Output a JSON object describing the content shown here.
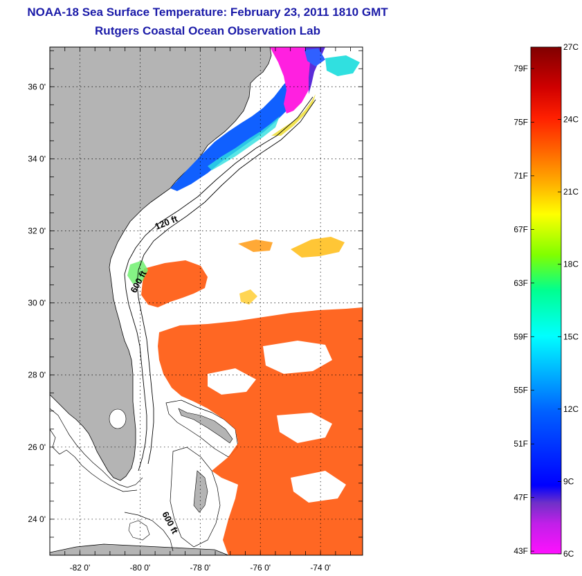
{
  "title": "NOAA-18 Sea Surface Temperature:  February 23, 2011 1810 GMT",
  "subtitle": "Rutgers Coastal Ocean Observation Lab",
  "map": {
    "lon_range": [
      -83,
      -72.6
    ],
    "lat_range": [
      23.0,
      37.1
    ],
    "lat_ticks": [
      {
        "value": 36,
        "label": "36 0'"
      },
      {
        "value": 34,
        "label": "34 0'"
      },
      {
        "value": 32,
        "label": "32 0'"
      },
      {
        "value": 30,
        "label": "30 0'"
      },
      {
        "value": 28,
        "label": "28 0'"
      },
      {
        "value": 26,
        "label": "26 0'"
      },
      {
        "value": 24,
        "label": "24 0'"
      }
    ],
    "lon_ticks": [
      {
        "value": -82,
        "label": "-82 0'"
      },
      {
        "value": -80,
        "label": "-80 0'"
      },
      {
        "value": -78,
        "label": "-78 0'"
      },
      {
        "value": -76,
        "label": "-76 0'"
      },
      {
        "value": -74,
        "label": "-74 0'"
      }
    ],
    "isobath_labels": [
      "120 ft",
      "600 ft",
      "600 ft"
    ],
    "colors": {
      "land": "#b4b4b4",
      "ocean_nodata": "#ffffff",
      "grid": "#000000"
    }
  },
  "colorbar": {
    "celsius_labels": [
      "27C",
      "24C",
      "21C",
      "18C",
      "15C",
      "12C",
      "9C",
      "6C"
    ],
    "fahrenheit_labels": [
      "79F",
      "75F",
      "71F",
      "67F",
      "63F",
      "59F",
      "55F",
      "51F",
      "47F",
      "43F"
    ],
    "range_c": [
      6,
      27
    ],
    "stops": [
      "#ff10ff",
      "#8040d0",
      "#0000ff",
      "#0080ff",
      "#00ffff",
      "#00ff80",
      "#c0ff00",
      "#ffff00",
      "#ffa000",
      "#ff4000",
      "#e00000",
      "#800000"
    ]
  }
}
